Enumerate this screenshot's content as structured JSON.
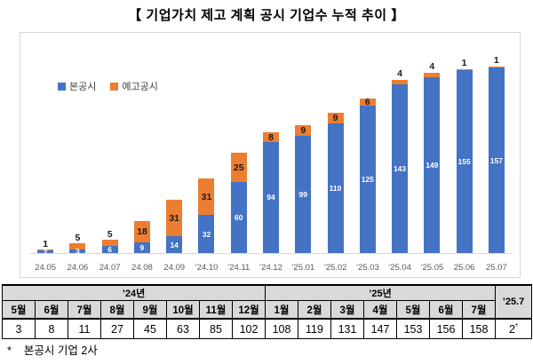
{
  "title": "【 기업가치 제고 계획 공시 기업수 누적 추이 】",
  "colors": {
    "main_series": "#4472C4",
    "pre_series": "#ED7D31",
    "table_header_bg": "#D9D9D9",
    "chart_border": "#D6D6D6",
    "axis_line": "#D9D9D9",
    "tick_label": "#595959"
  },
  "chart_data": {
    "type": "bar",
    "stacked": true,
    "title": "기업가치 제고 계획 공시 기업수 누적 추이",
    "categories": [
      "24.05",
      "24.06",
      "24.07",
      "24.08",
      "24.09",
      "’24.10",
      "’24.11",
      "’24.12",
      "’25.01",
      "’25.02",
      "’25.03",
      "’25.04",
      "’25.05",
      "25.06",
      "25.07"
    ],
    "series": [
      {
        "name": "본공시",
        "color": "#4472C4",
        "values": [
          2,
          3,
          6,
          9,
          14,
          32,
          60,
          94,
          99,
          110,
          125,
          143,
          149,
          155,
          157
        ]
      },
      {
        "name": "예고공시",
        "color": "#ED7D31",
        "values": [
          1,
          5,
          5,
          18,
          31,
          31,
          25,
          8,
          9,
          9,
          6,
          4,
          4,
          1,
          1
        ]
      }
    ],
    "totals": [
      3,
      8,
      11,
      27,
      45,
      63,
      85,
      102,
      108,
      119,
      131,
      147,
      153,
      156,
      158
    ],
    "ylim": [
      0,
      158
    ],
    "xlabel": "",
    "ylabel": "",
    "grid": false,
    "legend_position": "top-left"
  },
  "table": {
    "group_headers": [
      {
        "label": "’24년",
        "span": 8
      },
      {
        "label": "’25년",
        "span": 7
      }
    ],
    "last_col_header": "’25.7",
    "month_headers": [
      "5월",
      "6월",
      "7월",
      "8월",
      "9월",
      "10월",
      "11월",
      "12월",
      "1월",
      "2월",
      "3월",
      "4월",
      "5월",
      "6월",
      "7월"
    ],
    "values": [
      "3",
      "8",
      "11",
      "27",
      "45",
      "63",
      "85",
      "102",
      "108",
      "119",
      "131",
      "147",
      "153",
      "156",
      "158"
    ],
    "last_col_value": "2*"
  },
  "footnote": {
    "marker": "*",
    "text": "본공시 기업 2사"
  }
}
